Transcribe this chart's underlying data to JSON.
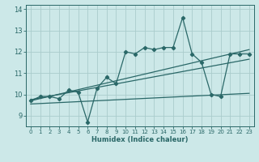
{
  "xlabel": "Humidex (Indice chaleur)",
  "xlim": [
    -0.5,
    23.5
  ],
  "ylim": [
    8.5,
    14.2
  ],
  "yticks": [
    9,
    10,
    11,
    12,
    13,
    14
  ],
  "xticks": [
    0,
    1,
    2,
    3,
    4,
    5,
    6,
    7,
    8,
    9,
    10,
    11,
    12,
    13,
    14,
    15,
    16,
    17,
    18,
    19,
    20,
    21,
    22,
    23
  ],
  "bg_color": "#cce8e8",
  "grid_color": "#aacccc",
  "line_color": "#2a6868",
  "line1_x": [
    0,
    1,
    2,
    3,
    4,
    5,
    6,
    7,
    8,
    9,
    10,
    11,
    12,
    13,
    14,
    15,
    16,
    17,
    18,
    19,
    20,
    21,
    22,
    23
  ],
  "line1_y": [
    9.7,
    9.9,
    9.9,
    9.8,
    10.2,
    10.1,
    8.7,
    10.3,
    10.8,
    10.5,
    12.0,
    11.9,
    12.2,
    12.1,
    12.2,
    12.2,
    13.6,
    11.9,
    11.5,
    10.0,
    9.9,
    11.9,
    11.9,
    11.9
  ],
  "line2_x": [
    0,
    23
  ],
  "line2_y": [
    9.7,
    12.1
  ],
  "line3_x": [
    0,
    23
  ],
  "line3_y": [
    9.75,
    11.65
  ],
  "line4_x": [
    0,
    23
  ],
  "line4_y": [
    9.55,
    10.05
  ]
}
